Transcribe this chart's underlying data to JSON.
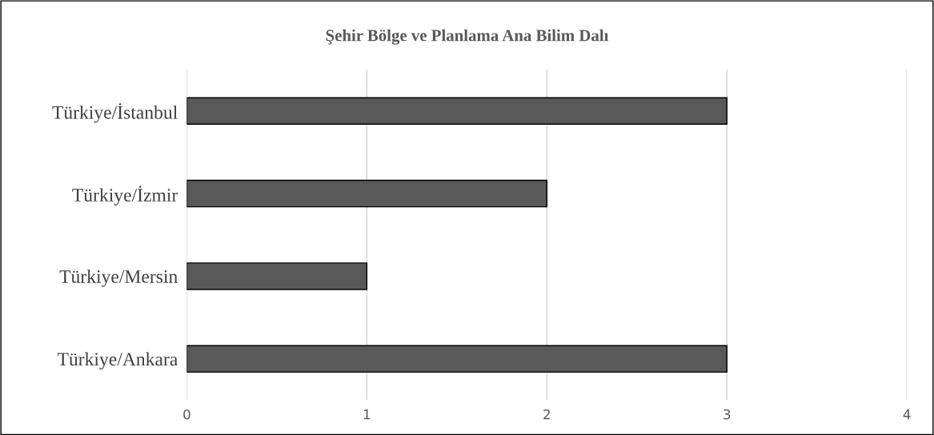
{
  "chart_data": {
    "type": "bar",
    "orientation": "horizontal",
    "title": "Şehir Bölge ve Planlama Ana Bilim Dalı",
    "categories": [
      "Türkiye/İstanbul",
      "Türkiye/İzmir",
      "Türkiye/Mersin",
      "Türkiye/Ankara"
    ],
    "values": [
      3,
      2,
      1,
      3
    ],
    "color": "#595959",
    "xlim": [
      0,
      4
    ],
    "xticks": [
      0,
      1,
      2,
      3,
      4
    ],
    "grid": "x",
    "legend": false
  }
}
